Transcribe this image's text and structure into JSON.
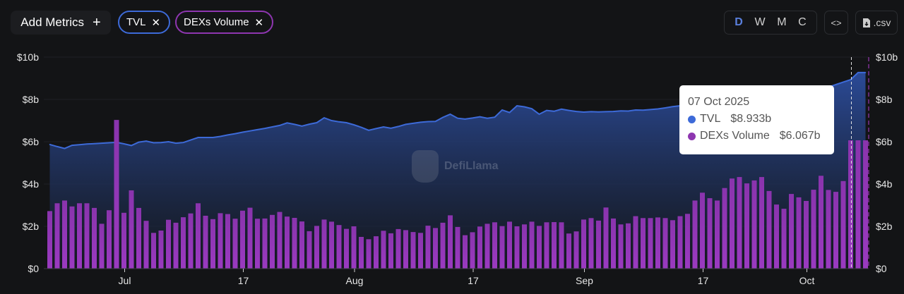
{
  "toolbar": {
    "add_metrics_label": "Add Metrics",
    "add_icon": "+",
    "chips": [
      {
        "label": "TVL",
        "color": "#3d6ad8"
      },
      {
        "label": "DEXs Volume",
        "color": "#8e36b0"
      }
    ],
    "close_icon": "✕",
    "periods": [
      "D",
      "W",
      "M",
      "C"
    ],
    "active_period": "D",
    "embed_label": "<>",
    "csv_label": ".csv"
  },
  "watermark": "DefiLlama",
  "tooltip": {
    "date": "07 Oct 2025",
    "rows": [
      {
        "name": "TVL",
        "value": "$8.933b",
        "color": "#3d6ad8"
      },
      {
        "name": "DEXs Volume",
        "value": "$6.067b",
        "color": "#8e36b0"
      }
    ]
  },
  "chart_data": {
    "type": "bar+area",
    "x_start": "2025-06-21",
    "x_end": "2025-10-09",
    "x_ticks": [
      {
        "label": "Jul",
        "date": "2025-07-01"
      },
      {
        "label": "17",
        "date": "2025-07-17"
      },
      {
        "label": "Aug",
        "date": "2025-08-01"
      },
      {
        "label": "17",
        "date": "2025-08-17"
      },
      {
        "label": "Sep",
        "date": "2025-09-01"
      },
      {
        "label": "17",
        "date": "2025-09-17"
      },
      {
        "label": "Oct",
        "date": "2025-10-01"
      }
    ],
    "y_ticks_left": [
      "$0",
      "$2b",
      "$4b",
      "$6b",
      "$8b",
      "$10b"
    ],
    "y_ticks_right": [
      "$0",
      "$2b",
      "$4b",
      "$6b",
      "$8b",
      "$10b"
    ],
    "ylim": [
      0,
      10
    ],
    "unit": "billion USD",
    "grid": true,
    "hover_date": "2025-10-07",
    "series": [
      {
        "name": "TVL",
        "type": "area",
        "color": "#3d6ad8",
        "values": [
          5.87,
          5.77,
          5.68,
          5.83,
          5.86,
          5.89,
          5.91,
          5.93,
          5.95,
          5.97,
          5.9,
          5.82,
          5.98,
          6.03,
          5.95,
          5.96,
          6.0,
          5.93,
          5.96,
          6.08,
          6.2,
          6.2,
          6.2,
          6.25,
          6.32,
          6.38,
          6.45,
          6.51,
          6.57,
          6.63,
          6.7,
          6.77,
          6.89,
          6.82,
          6.74,
          6.83,
          6.9,
          7.13,
          7.0,
          6.94,
          6.9,
          6.8,
          6.68,
          6.54,
          6.62,
          6.7,
          6.64,
          6.72,
          6.82,
          6.87,
          6.92,
          6.95,
          6.96,
          7.15,
          7.3,
          7.11,
          7.07,
          7.12,
          7.18,
          7.11,
          7.16,
          7.5,
          7.38,
          7.7,
          7.65,
          7.56,
          7.3,
          7.48,
          7.44,
          7.54,
          7.48,
          7.43,
          7.4,
          7.42,
          7.41,
          7.42,
          7.43,
          7.46,
          7.45,
          7.5,
          7.49,
          7.52,
          7.55,
          7.6,
          7.66,
          7.7,
          7.73,
          7.76,
          7.8,
          7.82,
          7.85,
          7.88,
          7.9,
          7.95,
          7.98,
          8.02,
          8.05,
          8.1,
          8.15,
          8.2,
          8.25,
          8.3,
          8.35,
          8.42,
          8.5,
          8.58,
          8.7,
          8.82,
          8.933,
          9.27,
          9.27
        ]
      },
      {
        "name": "DEXs Volume",
        "type": "bar",
        "color": "#8e36b0",
        "values": [
          2.72,
          3.09,
          3.22,
          2.94,
          3.09,
          3.09,
          2.87,
          2.12,
          2.76,
          7.03,
          2.64,
          3.7,
          2.87,
          2.26,
          1.69,
          1.8,
          2.31,
          2.17,
          2.43,
          2.61,
          3.09,
          2.5,
          2.34,
          2.62,
          2.58,
          2.36,
          2.74,
          2.88,
          2.36,
          2.37,
          2.54,
          2.68,
          2.46,
          2.4,
          2.23,
          1.77,
          2.02,
          2.32,
          2.22,
          2.06,
          1.88,
          2.0,
          1.5,
          1.39,
          1.53,
          1.79,
          1.67,
          1.87,
          1.82,
          1.73,
          1.69,
          2.03,
          1.92,
          2.17,
          2.52,
          1.97,
          1.58,
          1.72,
          1.99,
          2.12,
          2.19,
          2.01,
          2.22,
          2.0,
          2.09,
          2.22,
          2.02,
          2.19,
          2.2,
          2.19,
          1.66,
          1.76,
          2.32,
          2.39,
          2.27,
          2.89,
          2.37,
          2.09,
          2.14,
          2.48,
          2.39,
          2.39,
          2.42,
          2.39,
          2.29,
          2.48,
          2.59,
          3.22,
          3.59,
          3.33,
          3.22,
          3.81,
          4.26,
          4.33,
          4.03,
          4.17,
          4.33,
          3.67,
          3.03,
          2.83,
          3.53,
          3.37,
          3.2,
          3.73,
          4.39,
          3.72,
          3.63,
          4.14,
          6.067,
          6.067,
          6.067
        ]
      }
    ]
  }
}
